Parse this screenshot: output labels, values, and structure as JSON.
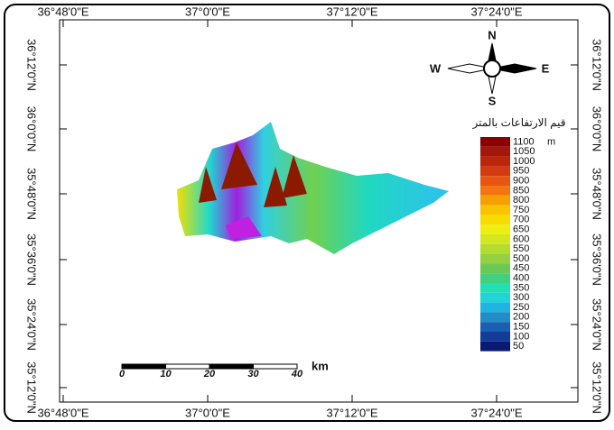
{
  "frame": {
    "top_labels": [
      "36°48'0\"E",
      "37°0'0\"E",
      "37°12'0\"E",
      "37°24'0\"E"
    ],
    "bottom_labels": [
      "36°48'0\"E",
      "37°0'0\"E",
      "37°12'0\"E",
      "37°24'0\"E"
    ],
    "left_labels": [
      "36°12'0\"N",
      "36°0'0\"N",
      "35°48'0\"N",
      "35°36'0\"N",
      "35°24'0\"N",
      "35°12'0\"N"
    ],
    "right_labels": [
      "36°12'0\"N",
      "36°0'0\"N",
      "35°48'0\"N",
      "35°36'0\"N",
      "35°24'0\"N",
      "35°12'0\"N"
    ]
  },
  "compass": {
    "north": "N",
    "south": "S",
    "east": "E",
    "west": "W"
  },
  "legend": {
    "title": "قيم الارتفاعات بالمتر",
    "unit": "m",
    "items": [
      {
        "label": "1100",
        "color": "#8b0000"
      },
      {
        "label": "1050",
        "color": "#a3160a"
      },
      {
        "label": "1000",
        "color": "#bb250c"
      },
      {
        "label": "950",
        "color": "#d23a10"
      },
      {
        "label": "900",
        "color": "#e85512"
      },
      {
        "label": "850",
        "color": "#f27412"
      },
      {
        "label": "800",
        "color": "#f6a000"
      },
      {
        "label": "750",
        "color": "#f8c400"
      },
      {
        "label": "700",
        "color": "#f8dc00"
      },
      {
        "label": "650",
        "color": "#eeee10"
      },
      {
        "label": "600",
        "color": "#d2e622"
      },
      {
        "label": "550",
        "color": "#b4dc30"
      },
      {
        "label": "500",
        "color": "#94d040"
      },
      {
        "label": "450",
        "color": "#6cc854"
      },
      {
        "label": "400",
        "color": "#40d080"
      },
      {
        "label": "350",
        "color": "#22e0b4"
      },
      {
        "label": "300",
        "color": "#20d4d8"
      },
      {
        "label": "250",
        "color": "#20b4e0"
      },
      {
        "label": "200",
        "color": "#208cc8"
      },
      {
        "label": "150",
        "color": "#1a60b0"
      },
      {
        "label": "100",
        "color": "#123c98"
      },
      {
        "label": "50",
        "color": "#0a1a70"
      }
    ]
  },
  "scale_bar": {
    "labels": [
      "0",
      "10",
      "20",
      "30",
      "40"
    ],
    "unit": "km"
  }
}
